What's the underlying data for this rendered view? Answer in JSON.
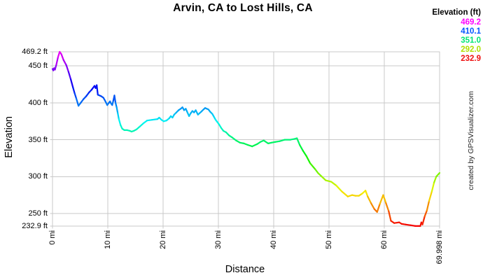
{
  "title": "Arvin, CA to Lost Hills, CA",
  "watermark": "created by GPSVisualizer.com",
  "legend": {
    "header": "Elevation (ft)",
    "items": [
      {
        "label": "469.2",
        "color": "#ff00ff"
      },
      {
        "label": "410.1",
        "color": "#0055ff"
      },
      {
        "label": "351.0",
        "color": "#00e673"
      },
      {
        "label": "292.0",
        "color": "#b0e000"
      },
      {
        "label": "232.9",
        "color": "#ee1111"
      }
    ]
  },
  "colors": {
    "grid": "#c9c9c9",
    "background": "#ffffff",
    "text": "#000000"
  },
  "chart_data": {
    "type": "line",
    "title": "Arvin, CA to Lost Hills, CA",
    "xlabel": "Distance",
    "ylabel": "Elevation",
    "x_unit": "mi",
    "y_unit": "ft",
    "xlim": [
      0,
      69.998
    ],
    "ylim": [
      232.9,
      469.2
    ],
    "grid": true,
    "legend_position": "top-right",
    "color_mode": "elevation-rainbow-magenta-high-red-low",
    "x_ticks": [
      0,
      10,
      20,
      30,
      40,
      50,
      60,
      69.998
    ],
    "x_tick_labels": [
      "0 mi",
      "10 mi",
      "20 mi",
      "30 mi",
      "40 mi",
      "50 mi",
      "60 mi",
      "69.998 mi"
    ],
    "y_ticks": [
      469.2,
      450,
      400,
      350,
      300,
      250,
      232.9
    ],
    "y_tick_labels": [
      "469.2 ft",
      "450 ft",
      "400 ft",
      "350 ft",
      "300 ft",
      "250 ft",
      "232.9 ft"
    ],
    "points": [
      [
        0,
        446
      ],
      [
        0.15,
        444
      ],
      [
        0.3,
        447
      ],
      [
        0.45,
        445
      ],
      [
        0.7,
        452
      ],
      [
        1.0,
        462
      ],
      [
        1.3,
        469.2
      ],
      [
        1.6,
        466
      ],
      [
        2.0,
        458
      ],
      [
        2.5,
        451
      ],
      [
        2.9,
        442
      ],
      [
        3.3,
        432
      ],
      [
        3.7,
        421
      ],
      [
        4.0,
        413
      ],
      [
        4.3,
        406
      ],
      [
        4.7,
        396
      ],
      [
        5.1,
        400
      ],
      [
        5.6,
        405
      ],
      [
        6.1,
        409
      ],
      [
        6.6,
        414
      ],
      [
        7.1,
        418
      ],
      [
        7.6,
        423
      ],
      [
        7.8,
        420
      ],
      [
        8.0,
        424
      ],
      [
        8.2,
        411
      ],
      [
        8.5,
        410
      ],
      [
        8.8,
        409
      ],
      [
        9.2,
        407
      ],
      [
        9.5,
        403
      ],
      [
        9.7,
        400
      ],
      [
        9.9,
        397
      ],
      [
        10.2,
        400
      ],
      [
        10.4,
        402
      ],
      [
        10.6,
        399
      ],
      [
        10.8,
        397
      ],
      [
        11.0,
        403
      ],
      [
        11.2,
        410
      ],
      [
        11.4,
        400
      ],
      [
        11.6,
        394
      ],
      [
        11.8,
        386
      ],
      [
        12.0,
        378
      ],
      [
        12.3,
        370
      ],
      [
        12.6,
        365
      ],
      [
        13.0,
        363
      ],
      [
        13.5,
        363
      ],
      [
        14.0,
        362
      ],
      [
        14.3,
        361
      ],
      [
        14.7,
        362
      ],
      [
        15.2,
        364
      ],
      [
        15.8,
        368
      ],
      [
        16.4,
        372
      ],
      [
        17.1,
        376
      ],
      [
        18.0,
        377
      ],
      [
        19.0,
        378
      ],
      [
        19.3,
        380
      ],
      [
        19.7,
        377
      ],
      [
        20.1,
        375
      ],
      [
        20.6,
        376
      ],
      [
        21.1,
        379
      ],
      [
        21.4,
        382
      ],
      [
        21.7,
        380
      ],
      [
        22.0,
        384
      ],
      [
        22.4,
        387
      ],
      [
        22.8,
        390
      ],
      [
        23.2,
        392
      ],
      [
        23.5,
        394
      ],
      [
        23.8,
        390
      ],
      [
        24.1,
        392
      ],
      [
        24.4,
        387
      ],
      [
        24.7,
        382
      ],
      [
        25.0,
        386
      ],
      [
        25.3,
        389
      ],
      [
        25.6,
        387
      ],
      [
        25.9,
        390
      ],
      [
        26.3,
        384
      ],
      [
        26.6,
        386
      ],
      [
        26.9,
        388
      ],
      [
        27.3,
        391
      ],
      [
        27.6,
        393
      ],
      [
        27.9,
        392
      ],
      [
        28.2,
        391
      ],
      [
        28.5,
        388
      ],
      [
        28.9,
        385
      ],
      [
        29.2,
        381
      ],
      [
        29.5,
        377
      ],
      [
        29.8,
        374
      ],
      [
        30.1,
        371
      ],
      [
        30.5,
        366
      ],
      [
        30.9,
        362
      ],
      [
        31.4,
        360
      ],
      [
        31.9,
        356
      ],
      [
        32.5,
        353
      ],
      [
        33.2,
        349
      ],
      [
        33.9,
        346
      ],
      [
        34.6,
        345
      ],
      [
        35.3,
        343
      ],
      [
        36.1,
        341
      ],
      [
        37.0,
        344
      ],
      [
        37.6,
        347
      ],
      [
        38.2,
        349
      ],
      [
        39.0,
        345
      ],
      [
        39.6,
        346
      ],
      [
        40.3,
        347
      ],
      [
        41.1,
        348
      ],
      [
        42.0,
        350
      ],
      [
        43.0,
        350
      ],
      [
        43.7,
        351
      ],
      [
        44.2,
        352
      ],
      [
        44.7,
        343
      ],
      [
        45.3,
        335
      ],
      [
        45.9,
        328
      ],
      [
        46.6,
        318
      ],
      [
        47.5,
        310
      ],
      [
        48.0,
        305
      ],
      [
        48.7,
        300
      ],
      [
        49.4,
        295
      ],
      [
        50.4,
        293
      ],
      [
        51.3,
        288
      ],
      [
        52.3,
        280
      ],
      [
        53.4,
        273
      ],
      [
        54.2,
        275
      ],
      [
        54.8,
        274
      ],
      [
        55.4,
        274
      ],
      [
        56.0,
        277
      ],
      [
        56.6,
        281
      ],
      [
        57.0,
        273
      ],
      [
        57.6,
        264
      ],
      [
        58.2,
        256
      ],
      [
        58.7,
        252
      ],
      [
        59.2,
        263
      ],
      [
        59.8,
        275
      ],
      [
        60.3,
        264
      ],
      [
        60.8,
        253
      ],
      [
        61.2,
        240
      ],
      [
        61.8,
        237
      ],
      [
        62.7,
        238
      ],
      [
        63.1,
        236
      ],
      [
        63.9,
        235
      ],
      [
        64.8,
        234
      ],
      [
        65.6,
        233
      ],
      [
        66.2,
        233
      ],
      [
        66.5,
        232.9
      ],
      [
        66.7,
        238
      ],
      [
        66.9,
        235
      ],
      [
        67.3,
        246
      ],
      [
        67.7,
        254
      ],
      [
        68.1,
        267
      ],
      [
        68.6,
        280
      ],
      [
        69.0,
        292
      ],
      [
        69.4,
        300
      ],
      [
        69.998,
        305
      ]
    ]
  }
}
